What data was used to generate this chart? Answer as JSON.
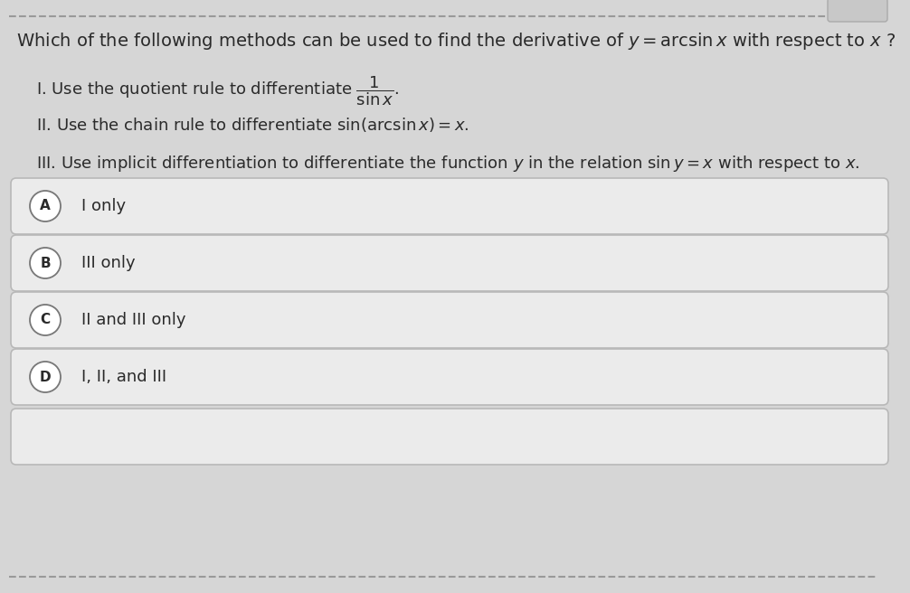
{
  "background_color": "#d6d6d6",
  "choice_box_color": "#ebebeb",
  "choice_border_color": "#b8b8b8",
  "text_color": "#2a2a2a",
  "label_circle_color": "#ffffff",
  "label_border_color": "#777777",
  "top_dashes_color": "#999999",
  "choices": [
    "I only",
    "III only",
    "II and III only",
    "I, II, and III"
  ],
  "choice_labels": [
    "A",
    "B",
    "C",
    "D"
  ],
  "title_fontsize": 14,
  "body_fontsize": 13,
  "choice_fontsize": 13
}
